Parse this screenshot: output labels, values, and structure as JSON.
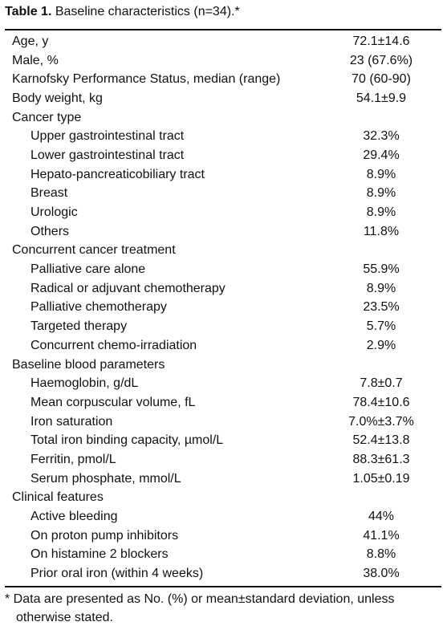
{
  "title": {
    "label": "Table 1.",
    "text": "Baseline characteristics (n=34).*"
  },
  "rows": [
    {
      "label": "Age, y",
      "value": "72.1±14.6"
    },
    {
      "label": "Male, %",
      "value": "23 (67.6%)"
    },
    {
      "label": "Karnofsky Performance Status, median (range)",
      "value": "70 (60-90)"
    },
    {
      "label": "Body weight, kg",
      "value": "54.1±9.9"
    },
    {
      "label": "Cancer type",
      "rows": [
        {
          "label": "Upper gastrointestinal tract",
          "value": "32.3%"
        },
        {
          "label": "Lower gastrointestinal tract",
          "value": "29.4%"
        },
        {
          "label": "Hepato-pancreaticobiliary tract",
          "value": "8.9%"
        },
        {
          "label": "Breast",
          "value": "8.9%"
        },
        {
          "label": "Urologic",
          "value": "8.9%"
        },
        {
          "label": "Others",
          "value": "11.8%"
        }
      ]
    },
    {
      "label": "Concurrent cancer treatment",
      "rows": [
        {
          "label": "Palliative care alone",
          "value": "55.9%"
        },
        {
          "label": "Radical or adjuvant chemotherapy",
          "value": "8.9%"
        },
        {
          "label": "Palliative chemotherapy",
          "value": "23.5%"
        },
        {
          "label": "Targeted therapy",
          "value": "5.7%"
        },
        {
          "label": "Concurrent chemo-irradiation",
          "value": "2.9%"
        }
      ]
    },
    {
      "label": "Baseline blood parameters",
      "rows": [
        {
          "label": "Haemoglobin, g/dL",
          "value": "7.8±0.7"
        },
        {
          "label": "Mean corpuscular volume, fL",
          "value": "78.4±10.6"
        },
        {
          "label": "Iron saturation",
          "value": "7.0%±3.7%"
        },
        {
          "label": "Total iron binding capacity, µmol/L",
          "value": "52.4±13.8"
        },
        {
          "label": "Ferritin, pmol/L",
          "value": "88.3±61.3"
        },
        {
          "label": "Serum phosphate, mmol/L",
          "value": "1.05±0.19"
        }
      ]
    },
    {
      "label": "Clinical features",
      "rows": [
        {
          "label": "Active bleeding",
          "value": "44%"
        },
        {
          "label": "On proton pump inhibitors",
          "value": "41.1%"
        },
        {
          "label": "On histamine 2 blockers",
          "value": "8.8%"
        },
        {
          "label": "Prior oral iron (within 4 weeks)",
          "value": "38.0%"
        }
      ]
    }
  ],
  "footnote": "* Data are presented as No. (%) or mean±standard deviation, unless otherwise stated."
}
